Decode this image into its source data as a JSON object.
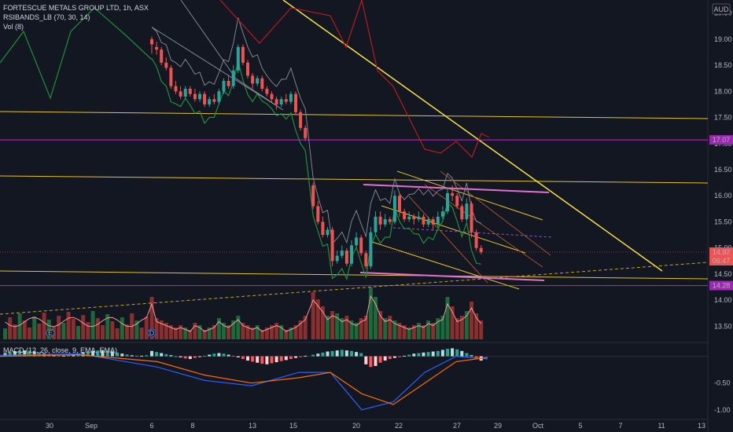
{
  "header": {
    "title": "FORTESCUE METALS GROUP LTD, 1h, ASX",
    "rsi_bands_label": "RSIBANDS_LB (70, 30, 14)",
    "vol_label": "Vol (8)",
    "currency": "AUD",
    "macd_label": "MACD (12, 26, close, 9, EMA, EMA)"
  },
  "price_scale": {
    "ticks": [
      "19.50",
      "19.00",
      "18.50",
      "18.00",
      "17.50",
      "17.00",
      "16.50",
      "16.00",
      "15.50",
      "15.00",
      "14.50",
      "14.00",
      "13.50"
    ],
    "badges": [
      {
        "label": "17.07",
        "color": "#9c27b0"
      },
      {
        "label": "14.92",
        "color": "#ef5350"
      },
      {
        "label": "06:47",
        "color": "#ef5350"
      },
      {
        "label": "14.28",
        "color": "#9c27b0"
      }
    ]
  },
  "macd_scale": {
    "ticks": [
      "0.00",
      "-0.50",
      "-1.00"
    ]
  },
  "time_axis": {
    "labels": [
      "30",
      "Sep",
      "6",
      "8",
      "13",
      "15",
      "20",
      "22",
      "27",
      "29",
      "Oct",
      "5",
      "7",
      "11",
      "13"
    ]
  },
  "markers": [
    {
      "letter": "E",
      "color": "#2a8a99"
    },
    {
      "letter": "D",
      "color": "#2962ff"
    }
  ],
  "chart_data": {
    "type": "candlestick",
    "symbol": "FORTESCUE METALS GROUP LTD",
    "interval": "1h",
    "exchange": "ASX",
    "currency": "AUD",
    "y_range": [
      13.25,
      19.75
    ],
    "last_price": 14.92,
    "horizontal_levels": [
      {
        "price": 17.07,
        "color": "#9c27b0"
      },
      {
        "price": 14.28,
        "color": "#9c27b0"
      }
    ],
    "candles": [
      [
        19.0,
        18.9,
        19.05,
        18.72
      ],
      [
        18.85,
        18.8,
        18.95,
        18.7
      ],
      [
        18.8,
        18.55,
        18.85,
        18.5
      ],
      [
        18.55,
        18.45,
        18.65,
        18.4
      ],
      [
        18.45,
        18.1,
        18.5,
        18.05
      ],
      [
        18.1,
        18.0,
        18.2,
        17.95
      ],
      [
        18.0,
        17.9,
        18.1,
        17.85
      ],
      [
        17.9,
        18.05,
        18.1,
        17.85
      ],
      [
        18.05,
        17.95,
        18.1,
        17.9
      ],
      [
        17.95,
        17.85,
        18.05,
        17.8
      ],
      [
        17.85,
        17.95,
        18.0,
        17.8
      ],
      [
        17.95,
        17.75,
        18.0,
        17.7
      ],
      [
        17.75,
        17.85,
        17.9,
        17.7
      ],
      [
        17.85,
        17.8,
        17.95,
        17.75
      ],
      [
        17.8,
        18.0,
        18.05,
        17.75
      ],
      [
        18.0,
        18.2,
        18.25,
        17.95
      ],
      [
        18.2,
        18.1,
        18.3,
        18.05
      ],
      [
        18.1,
        18.4,
        18.5,
        18.05
      ],
      [
        18.4,
        18.85,
        18.9,
        18.35
      ],
      [
        18.85,
        18.55,
        18.9,
        18.5
      ],
      [
        18.55,
        18.3,
        18.6,
        18.25
      ],
      [
        18.3,
        18.15,
        18.35,
        18.05
      ],
      [
        18.15,
        18.25,
        18.3,
        18.1
      ],
      [
        18.25,
        18.05,
        18.3,
        18.0
      ],
      [
        18.05,
        17.95,
        18.1,
        17.9
      ],
      [
        17.95,
        17.85,
        18.0,
        17.8
      ],
      [
        17.85,
        17.75,
        17.9,
        17.65
      ],
      [
        17.75,
        17.85,
        17.9,
        17.7
      ],
      [
        17.85,
        17.8,
        17.95,
        17.75
      ],
      [
        17.8,
        17.95,
        18.0,
        17.75
      ],
      [
        17.95,
        17.6,
        18.0,
        17.55
      ],
      [
        17.6,
        17.3,
        17.65,
        17.25
      ],
      [
        17.3,
        17.1,
        17.35,
        17.05
      ],
      [
        16.2,
        15.8,
        16.25,
        15.75
      ],
      [
        15.8,
        15.5,
        15.9,
        15.45
      ],
      [
        15.5,
        15.25,
        15.6,
        15.2
      ],
      [
        15.25,
        15.35,
        15.4,
        15.2
      ],
      [
        15.35,
        14.75,
        15.4,
        14.65
      ],
      [
        14.75,
        14.85,
        14.95,
        14.7
      ],
      [
        14.85,
        14.95,
        15.05,
        14.8
      ],
      [
        14.95,
        14.7,
        15.0,
        14.65
      ],
      [
        14.7,
        15.05,
        15.15,
        14.65
      ],
      [
        15.05,
        15.2,
        15.3,
        15.0
      ],
      [
        15.2,
        14.9,
        15.25,
        14.85
      ],
      [
        14.9,
        14.65,
        14.95,
        14.6
      ],
      [
        14.65,
        15.3,
        15.4,
        14.6
      ],
      [
        15.3,
        15.6,
        15.7,
        15.25
      ],
      [
        15.6,
        15.45,
        15.7,
        15.35
      ],
      [
        15.45,
        15.55,
        15.65,
        15.4
      ],
      [
        15.55,
        15.5,
        15.6,
        15.45
      ],
      [
        15.5,
        16.0,
        16.1,
        15.45
      ],
      [
        16.0,
        15.7,
        16.05,
        15.6
      ],
      [
        15.7,
        15.55,
        15.75,
        15.5
      ],
      [
        15.55,
        15.6,
        15.7,
        15.5
      ],
      [
        15.6,
        15.55,
        15.65,
        15.45
      ],
      [
        15.55,
        15.6,
        15.7,
        15.5
      ],
      [
        15.6,
        15.45,
        15.65,
        15.4
      ],
      [
        15.45,
        15.55,
        15.6,
        15.4
      ],
      [
        15.55,
        15.45,
        15.6,
        15.35
      ],
      [
        15.45,
        15.6,
        15.7,
        15.4
      ],
      [
        15.6,
        15.7,
        15.8,
        15.55
      ],
      [
        15.7,
        16.05,
        16.15,
        15.65
      ],
      [
        16.05,
        16.0,
        16.2,
        15.9
      ],
      [
        16.0,
        15.8,
        16.05,
        15.75
      ],
      [
        15.8,
        15.55,
        15.85,
        15.5
      ],
      [
        15.55,
        15.85,
        15.95,
        15.5
      ],
      [
        15.85,
        15.3,
        15.9,
        15.2
      ],
      [
        15.3,
        15.0,
        15.35,
        14.95
      ],
      [
        15.0,
        14.92,
        15.05,
        14.88
      ]
    ],
    "volumes": [
      0.9,
      0.45,
      0.4,
      0.35,
      0.3,
      0.25,
      0.3,
      0.25,
      0.2,
      0.35,
      0.3,
      0.2,
      0.25,
      0.3,
      0.45,
      0.35,
      0.3,
      0.4,
      0.5,
      0.35,
      0.3,
      0.25,
      0.3,
      0.2,
      0.25,
      0.3,
      0.35,
      0.3,
      0.2,
      0.25,
      0.3,
      0.4,
      0.5,
      1.0,
      0.85,
      0.7,
      0.5,
      0.6,
      0.55,
      0.45,
      0.5,
      0.4,
      0.35,
      0.45,
      0.5,
      1.1,
      0.9,
      0.6,
      0.45,
      0.5,
      0.4,
      0.35,
      0.3,
      0.25,
      0.3,
      0.35,
      0.3,
      0.4,
      0.35,
      0.45,
      0.5,
      0.9,
      0.7,
      0.45,
      0.5,
      0.6,
      0.8,
      0.55,
      0.4
    ],
    "macd": {
      "histogram": [
        0.1,
        0.08,
        0.06,
        0.04,
        0.02,
        0.0,
        -0.02,
        -0.04,
        -0.05,
        -0.03,
        -0.01,
        0.01,
        0.03,
        0.05,
        0.06,
        0.05,
        0.03,
        0.01,
        -0.02,
        -0.05,
        -0.08,
        -0.1,
        -0.12,
        -0.14,
        -0.15,
        -0.13,
        -0.11,
        -0.09,
        -0.07,
        -0.05,
        -0.03,
        -0.01,
        0.01,
        0.03,
        0.05,
        0.07,
        0.09,
        0.1,
        0.11,
        0.12,
        0.11,
        0.1,
        0.08,
        0.06,
        -0.15,
        -0.2,
        -0.18,
        -0.12,
        -0.08,
        -0.05,
        -0.03,
        -0.01,
        0.01,
        0.03,
        0.05,
        0.06,
        0.07,
        0.08,
        0.09,
        0.1,
        0.12,
        0.14,
        0.15,
        0.13,
        0.1,
        0.06,
        0.02,
        -0.04,
        -0.08
      ],
      "y_range": [
        -1.15,
        0.2
      ]
    }
  }
}
